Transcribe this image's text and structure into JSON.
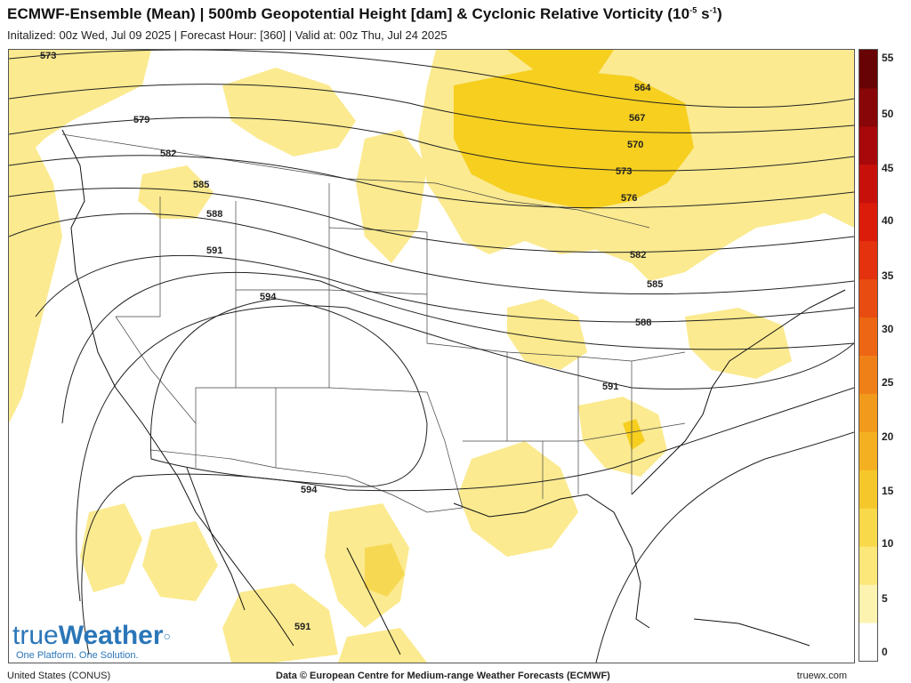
{
  "header": {
    "title_main": "ECMWF-Ensemble (Mean) | 500mb Geopotential Height [dam] & Cyclonic Relative Vorticity (10",
    "title_exp1": "-5",
    "title_mid": " s",
    "title_exp2": "-1",
    "title_end": ")",
    "subtitle": "Initalized: 00z Wed, Jul 09 2025  |  Forecast Hour: [360]  |  Valid at: 00z Thu, Jul 24 2025"
  },
  "map": {
    "region": "United States (CONUS)",
    "contour_labels": [
      "573",
      "579",
      "582",
      "585",
      "588",
      "591",
      "594",
      "564",
      "567",
      "570",
      "573",
      "576",
      "582",
      "585",
      "588",
      "591",
      "594",
      "591"
    ]
  },
  "colorbar": {
    "ticks": [
      "55",
      "50",
      "45",
      "40",
      "35",
      "30",
      "25",
      "20",
      "15",
      "10",
      "5",
      "0"
    ],
    "colors": [
      "#ffffff",
      "#fdf3b0",
      "#fbe77a",
      "#f8d94a",
      "#f6c72a",
      "#f4b021",
      "#f29a1c",
      "#ef8018",
      "#ec6614",
      "#e84c10",
      "#e3320d",
      "#dc1c0b",
      "#c8100b",
      "#a8080a",
      "#880508",
      "#680305"
    ]
  },
  "footer": {
    "left": "United States (CONUS)",
    "center": "Data © European Centre for Medium-range Weather Forecasts (ECMWF)",
    "right": "truewx.com"
  },
  "logo": {
    "part1": "true",
    "part2": "Weather",
    "tagline": "One Platform. One Solution."
  }
}
